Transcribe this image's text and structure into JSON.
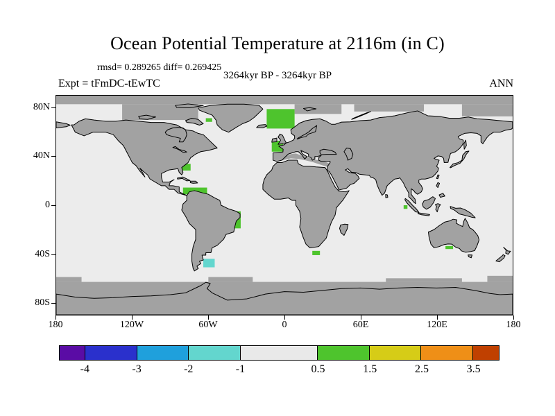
{
  "chart_data": {
    "type": "heatmap",
    "projection": "equirectangular",
    "title": "Ocean Potential Temperature at 2116m (in C)",
    "annotations": {
      "rmsd": "0.289265",
      "diff": "0.269425",
      "stats_line": "rmsd= 0.289265 diff= 0.269425",
      "period": "3264kyr BP - 3264kyr BP",
      "experiment": "Expt = tFmDC-tEwTC",
      "season": "ANN"
    },
    "lon_range": [
      -180,
      180
    ],
    "lat_range": [
      -90,
      90
    ],
    "x_ticks": [
      {
        "label": "180",
        "lon": -180
      },
      {
        "label": "120W",
        "lon": -120
      },
      {
        "label": "60W",
        "lon": -60
      },
      {
        "label": "0",
        "lon": 0
      },
      {
        "label": "60E",
        "lon": 60
      },
      {
        "label": "120E",
        "lon": 120
      },
      {
        "label": "180",
        "lon": 180
      }
    ],
    "y_ticks": [
      {
        "label": "80N",
        "lat": 80
      },
      {
        "label": "40N",
        "lat": 40
      },
      {
        "label": "0",
        "lat": 0
      },
      {
        "label": "40S",
        "lat": -40
      },
      {
        "label": "80S",
        "lat": -80
      }
    ],
    "colorbar": {
      "edges": [
        -4.5,
        -4,
        -3,
        -2,
        -1,
        0.5,
        1.5,
        2.5,
        3.5,
        4
      ],
      "tick_labels": [
        "-4",
        "-3",
        "-2",
        "-1",
        "0.5",
        "1.5",
        "2.5",
        "3.5"
      ],
      "segment_colors": [
        "#5A0CA5",
        "#2A30CC",
        "#1FA0DC",
        "#63D6CE",
        "#E9E9E9",
        "#4EC42D",
        "#D6CC17",
        "#EF8F17",
        "#C04000"
      ]
    },
    "colors": {
      "ocean": "#ECECEC",
      "land": "#A2A2A2",
      "mask": "#A2A2A2",
      "coastline": "#000000"
    },
    "anomaly_regions": [
      {
        "name": "nordic-seas",
        "lon": [
          -14,
          8
        ],
        "lat": [
          63,
          79
        ],
        "level_index": 5,
        "range": "0.5 to 1.5"
      },
      {
        "name": "baffin-bay-spot",
        "lon": [
          -58,
          -53
        ],
        "lat": [
          75.5,
          78
        ],
        "level_index": 6,
        "range": "1.5 to 2.5"
      },
      {
        "name": "davis-strait",
        "lon": [
          -62,
          -57
        ],
        "lat": [
          68.5,
          71.5
        ],
        "level_index": 5,
        "range": "0.5 to 1.5"
      },
      {
        "name": "biscay-west-europe",
        "lon": [
          -10,
          -1
        ],
        "lat": [
          44,
          53
        ],
        "level_index": 5,
        "range": "0.5 to 1.5"
      },
      {
        "name": "us-east-coast",
        "lon": [
          -81,
          -74
        ],
        "lat": [
          28.5,
          34
        ],
        "level_index": 5,
        "range": "0.5 to 1.5"
      },
      {
        "name": "caribbean",
        "lon": [
          -80,
          -61
        ],
        "lat": [
          9,
          14.5
        ],
        "level_index": 5,
        "range": "0.5 to 1.5"
      },
      {
        "name": "brazil-coast",
        "lon": [
          -40,
          -34.5
        ],
        "lat": [
          -19,
          -5
        ],
        "level_index": 5,
        "range": "0.5 to 1.5"
      },
      {
        "name": "patagonia-shelf",
        "lon": [
          -64,
          -55
        ],
        "lat": [
          -51,
          -44
        ],
        "level_index": 3,
        "range": "-2 to -1"
      },
      {
        "name": "south-africa",
        "lon": [
          22,
          28
        ],
        "lat": [
          -41,
          -37.5
        ],
        "level_index": 5,
        "range": "0.5 to 1.5"
      },
      {
        "name": "great-australian-bight",
        "lon": [
          127,
          133
        ],
        "lat": [
          -36,
          -33.5
        ],
        "level_index": 5,
        "range": "0.5 to 1.5"
      },
      {
        "name": "sumatra-offshore",
        "lon": [
          94,
          97
        ],
        "lat": [
          -3,
          0
        ],
        "level_index": 5,
        "range": "0.5 to 1.5"
      }
    ]
  }
}
